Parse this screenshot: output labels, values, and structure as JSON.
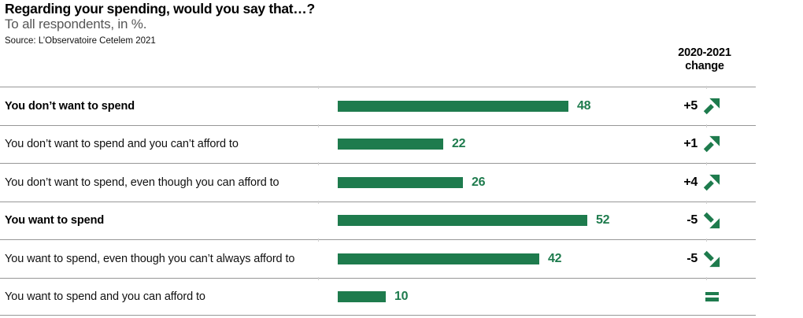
{
  "header": {
    "title": "Regarding your spending, would you say that…?",
    "subtitle": "To all respondents, in %.",
    "source": "Source: L’Observatoire Cetelem 2021",
    "change_col_line1": "2020-2021",
    "change_col_line2": "change"
  },
  "colors": {
    "bar_green": "#1e7b4d",
    "separator_gray": "#979797",
    "subtitle_gray": "#565656"
  },
  "chart_data": {
    "type": "bar",
    "orientation": "horizontal",
    "unit": "%",
    "title": "Regarding your spending, would you say that…?",
    "subtitle": "To all respondents, in %.",
    "source": "Source: L’Observatoire Cetelem 2021",
    "xlim": [
      0,
      55
    ],
    "grid": false,
    "value_labels": true,
    "categories": [
      "You don’t want to spend",
      "You don’t want to spend and you can’t afford to",
      "You don’t want to spend, even though you can afford to",
      "You want to spend",
      "You want to spend, even though you can’t always afford to",
      "You want to spend and you can afford to"
    ],
    "values": [
      48,
      22,
      26,
      52,
      42,
      10
    ],
    "change_column_header": "2020-2021 change",
    "rows": [
      {
        "label": "You don’t want to spend",
        "bold": true,
        "value": 48,
        "change": "+5",
        "trend": "up"
      },
      {
        "label": "You don’t want to spend and you can’t afford to",
        "bold": false,
        "value": 22,
        "change": "+1",
        "trend": "up"
      },
      {
        "label": "You don’t want to spend, even though you can afford to",
        "bold": false,
        "value": 26,
        "change": "+4",
        "trend": "up"
      },
      {
        "label": "You want to spend",
        "bold": true,
        "value": 52,
        "change": "-5",
        "trend": "down"
      },
      {
        "label": "You want to spend, even though you can’t always afford to",
        "bold": false,
        "value": 42,
        "change": "-5",
        "trend": "down"
      },
      {
        "label": "You want to spend and you can afford to",
        "bold": false,
        "value": 10,
        "change": "",
        "trend": "equal"
      }
    ]
  }
}
